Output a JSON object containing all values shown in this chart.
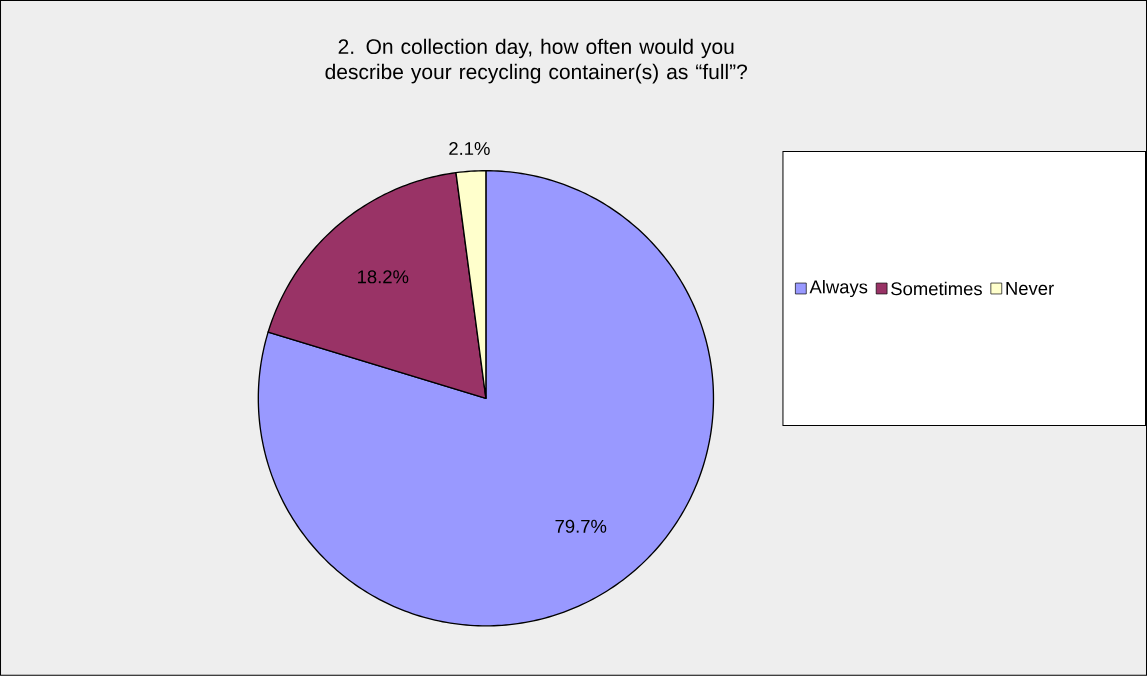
{
  "chart_data": {
    "type": "pie",
    "title": "2. On collection day, how often would you describe your recycling container(s) as “full”?",
    "categories": [
      "Always",
      "Sometimes",
      "Never"
    ],
    "values": [
      79.7,
      18.2,
      2.1
    ],
    "colors": [
      "#9999ff",
      "#993366",
      "#ffffcc"
    ],
    "value_labels": [
      "79.7%",
      "18.2%",
      "2.1%"
    ],
    "legend": "right"
  }
}
